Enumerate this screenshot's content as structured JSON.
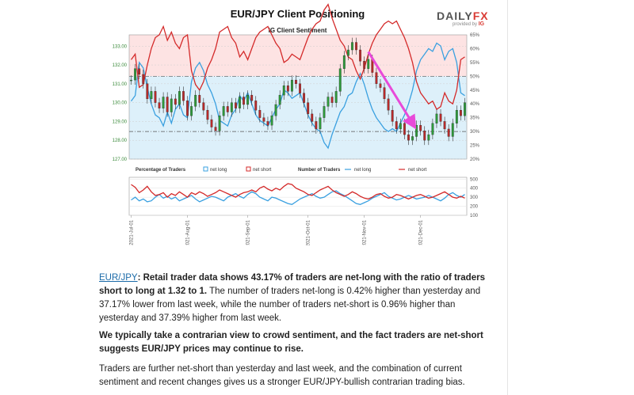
{
  "page_title": "EUR/JPY Client Positioning",
  "logo": {
    "main": "DAILY",
    "accent": "FX",
    "sub": "provided by",
    "sub_accent": "IG"
  },
  "chart_data": {
    "type": "line",
    "title": "IG Client Sentiment",
    "price_axis": {
      "ticks": [
        "133.00",
        "132.00",
        "131.00",
        "130.00",
        "129.00",
        "128.00",
        "127.00"
      ],
      "ylim": [
        127.0,
        133.6
      ]
    },
    "pct_axis": {
      "ticks": [
        "65%",
        "60%",
        "55%",
        "50%",
        "45%",
        "40%",
        "35%",
        "30%",
        "25%",
        "20%"
      ],
      "ylim": [
        20,
        65
      ]
    },
    "x_labels": [
      "2021-Jul-01",
      "2021-Aug-01",
      "2021-Sep-01",
      "2021-Oct-01",
      "2021-Nov-01",
      "2021-Dec-01"
    ],
    "price_candles_close": [
      131.2,
      131.8,
      131.5,
      131.0,
      130.2,
      130.6,
      130.0,
      129.7,
      130.3,
      129.5,
      130.2,
      129.9,
      130.6,
      130.1,
      129.3,
      129.8,
      130.4,
      130.0,
      129.6,
      129.1,
      128.7,
      128.5,
      129.3,
      129.8,
      129.5,
      130.0,
      129.7,
      130.3,
      129.9,
      130.4,
      130.1,
      129.6,
      129.2,
      129.0,
      128.8,
      129.3,
      129.9,
      130.4,
      130.9,
      130.6,
      131.2,
      131.0,
      130.5,
      130.0,
      129.4,
      129.0,
      128.6,
      129.2,
      129.8,
      130.3,
      130.0,
      130.6,
      131.8,
      132.5,
      132.8,
      133.2,
      132.8,
      132.2,
      131.8,
      132.3,
      131.6,
      131.0,
      130.8,
      130.2,
      129.6,
      129.0,
      128.6,
      128.9,
      128.3,
      128.0,
      128.2,
      128.8,
      128.5,
      128.0,
      128.3,
      128.9,
      129.4,
      129.0,
      128.6,
      128.2,
      128.9,
      129.6,
      129.3,
      130.0
    ],
    "pct_net_long": [
      41,
      43,
      55,
      53,
      46,
      40,
      36,
      35,
      32,
      37,
      33,
      38,
      40,
      36,
      35,
      48,
      53,
      55,
      52,
      47,
      44,
      40,
      34,
      33,
      32,
      36,
      38,
      43,
      41,
      44,
      40,
      36,
      34,
      33,
      32,
      35,
      38,
      40,
      45,
      44,
      42,
      43,
      44,
      40,
      36,
      33,
      31,
      30,
      26,
      24,
      29,
      33,
      37,
      39,
      43,
      44,
      48,
      51,
      47,
      42,
      38,
      35,
      33,
      31,
      30,
      31,
      30,
      33,
      36,
      40,
      45,
      52,
      56,
      58,
      60,
      59,
      62,
      61,
      56,
      59,
      60,
      55,
      44,
      43
    ],
    "pct_net_short": [
      56,
      58,
      46,
      47,
      54,
      60,
      64,
      65,
      68,
      63,
      66,
      62,
      60,
      64,
      65,
      52,
      47,
      45,
      48,
      53,
      56,
      60,
      66,
      67,
      68,
      64,
      62,
      57,
      59,
      56,
      60,
      64,
      66,
      67,
      68,
      65,
      62,
      60,
      55,
      56,
      58,
      57,
      56,
      60,
      64,
      67,
      69,
      70,
      74,
      76,
      71,
      67,
      63,
      61,
      57,
      56,
      52,
      49,
      53,
      58,
      62,
      65,
      67,
      69,
      70,
      69,
      70,
      67,
      64,
      60,
      55,
      48,
      44,
      42,
      40,
      41,
      38,
      39,
      44,
      41,
      40,
      45,
      56,
      57
    ],
    "reference_lines_pct": [
      50,
      30
    ],
    "legend_pct": {
      "label": "Percentage of Traders",
      "items": [
        "net long",
        "net short"
      ],
      "colors": [
        "#3aa0e0",
        "#d42a2a"
      ]
    },
    "legend_num": {
      "label": "Number of Traders",
      "items": [
        "net long",
        "net short"
      ],
      "colors": [
        "#3aa0e0",
        "#d42a2a"
      ]
    },
    "traders_axis": {
      "ticks": [
        "500",
        "400",
        "300",
        "200",
        "100"
      ],
      "ylim": [
        100,
        520
      ]
    },
    "traders_net_long": [
      270,
      300,
      260,
      280,
      250,
      260,
      300,
      330,
      290,
      310,
      280,
      300,
      260,
      280,
      300,
      320,
      280,
      250,
      270,
      290,
      310,
      300,
      280,
      260,
      300,
      320,
      340,
      310,
      290,
      330,
      360,
      340,
      300,
      280,
      260,
      300,
      290,
      270,
      250,
      230,
      220,
      250,
      280,
      300,
      320,
      340,
      310,
      290,
      300,
      330,
      360,
      370,
      340,
      320,
      290,
      260,
      230,
      220,
      240,
      260,
      290,
      310,
      330,
      350,
      310,
      290,
      270,
      280,
      300,
      320,
      300,
      280,
      290,
      300,
      320,
      300,
      280,
      260,
      290,
      330,
      350,
      320,
      300,
      330
    ],
    "traders_net_short": [
      440,
      410,
      350,
      380,
      420,
      360,
      320,
      330,
      350,
      300,
      340,
      320,
      360,
      330,
      300,
      350,
      330,
      360,
      340,
      310,
      330,
      350,
      380,
      360,
      340,
      320,
      300,
      330,
      350,
      360,
      380,
      360,
      400,
      420,
      390,
      370,
      400,
      380,
      420,
      450,
      440,
      400,
      380,
      360,
      330,
      320,
      350,
      380,
      400,
      420,
      380,
      350,
      330,
      310,
      330,
      360,
      340,
      310,
      290,
      280,
      300,
      330,
      340,
      310,
      290,
      300,
      330,
      320,
      300,
      280,
      300,
      320,
      330,
      310,
      290,
      300,
      320,
      340,
      360,
      330,
      300,
      290,
      310,
      290
    ],
    "arrow_color": "#e84ad9"
  },
  "paragraphs": {
    "p1_link": "EUR/JPY",
    "p1_bold": ": Retail trader data shows 43.17% of traders are net-long with the ratio of traders short to long at 1.32 to 1.",
    "p1_rest": " The number of traders net-long is 0.42% higher than yesterday and 37.17% lower from last week, while the number of traders net-short is 0.96% higher than yesterday and 37.39% higher from last week.",
    "p2_bold": "We typically take a contrarian view to crowd sentiment, and the fact traders are net-short suggests EUR/JPY prices may continue to rise.",
    "p3": "Traders are further net-short than yesterday and last week, and the combination of current sentiment and recent changes gives us a stronger EUR/JPY-bullish contrarian trading bias."
  }
}
